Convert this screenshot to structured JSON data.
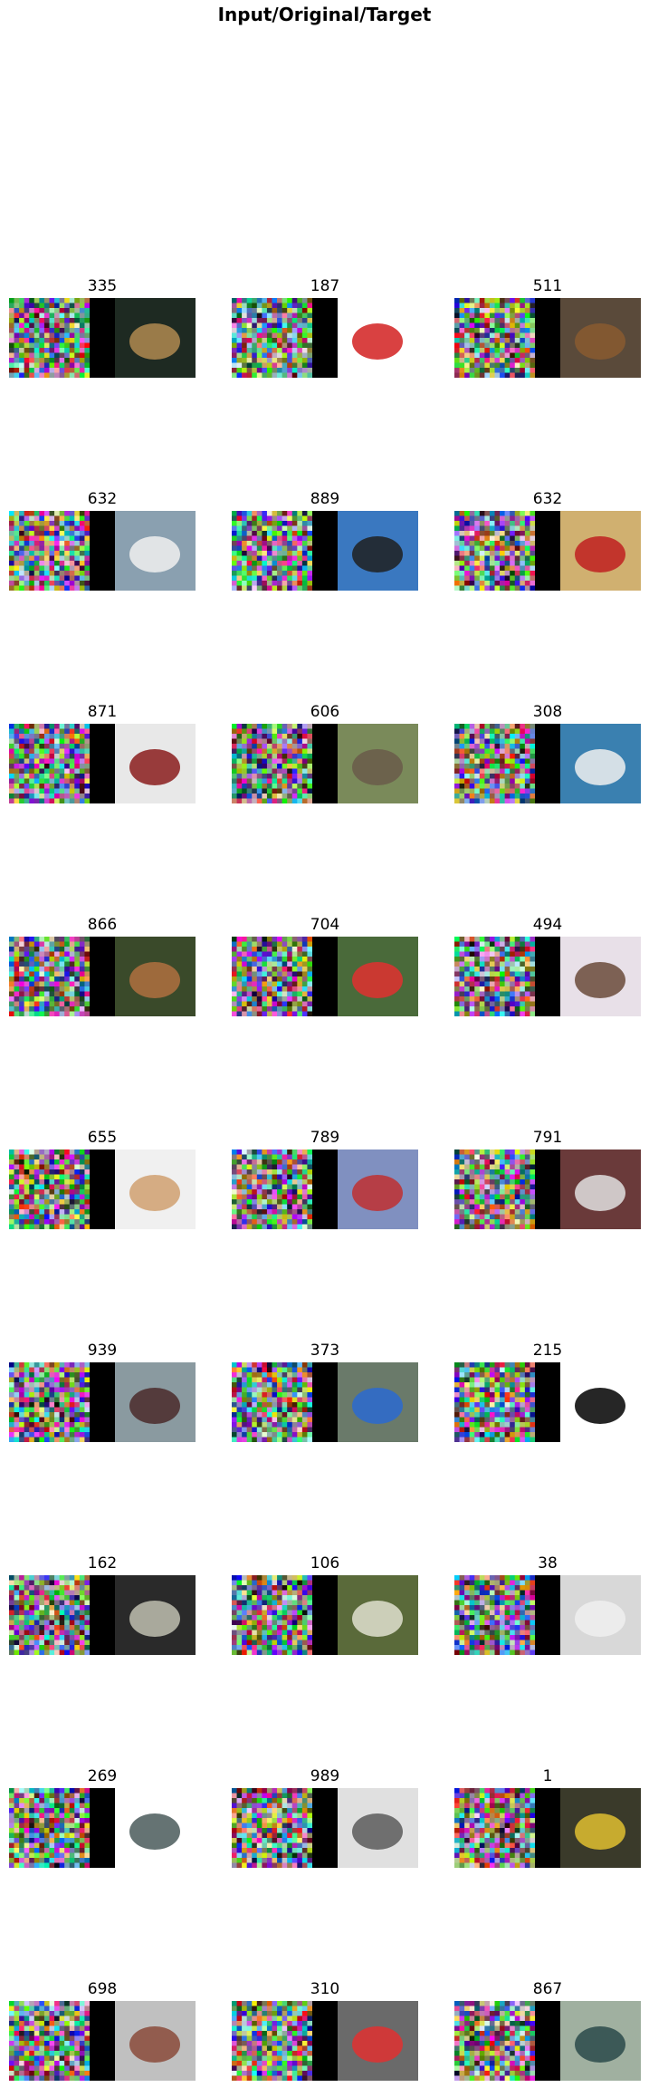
{
  "title": "Input/Original/Target",
  "grid": [
    [
      {
        "label": "335",
        "bg": "#1e2a22",
        "accent": "#b08a50"
      },
      {
        "label": "187",
        "bg": "#ffffff",
        "accent": "#d22020"
      },
      {
        "label": "511",
        "bg": "#5a4a3a",
        "accent": "#8a5a30"
      }
    ],
    [
      {
        "label": "632",
        "bg": "#8aa0b0",
        "accent": "#f0f0f0"
      },
      {
        "label": "889",
        "bg": "#3a78c0",
        "accent": "#202020"
      },
      {
        "label": "632",
        "bg": "#d0b070",
        "accent": "#c02020"
      }
    ],
    [
      {
        "label": "871",
        "bg": "#e8e8e8",
        "accent": "#8a1c1c"
      },
      {
        "label": "606",
        "bg": "#7a8a5a",
        "accent": "#6a5a4a"
      },
      {
        "label": "308",
        "bg": "#3a80b0",
        "accent": "#f0f0f0"
      }
    ],
    [
      {
        "label": "866",
        "bg": "#3a4a2a",
        "accent": "#b07040"
      },
      {
        "label": "704",
        "bg": "#4a6a3a",
        "accent": "#e03030"
      },
      {
        "label": "494",
        "bg": "#e8e0e8",
        "accent": "#6a4a3a"
      }
    ],
    [
      {
        "label": "655",
        "bg": "#f0f0f0",
        "accent": "#d0a070"
      },
      {
        "label": "789",
        "bg": "#8090c0",
        "accent": "#c03030"
      },
      {
        "label": "791",
        "bg": "#6a3a3a",
        "accent": "#e0e0e0"
      }
    ],
    [
      {
        "label": "939",
        "bg": "#8a9aa0",
        "accent": "#4a2a2a"
      },
      {
        "label": "373",
        "bg": "#6a7a6a",
        "accent": "#2a6ad0"
      },
      {
        "label": "215",
        "bg": "#ffffff",
        "accent": "#000000"
      }
    ],
    [
      {
        "label": "162",
        "bg": "#2a2a2a",
        "accent": "#c0c0b0"
      },
      {
        "label": "106",
        "bg": "#5a6a3a",
        "accent": "#e0e0d0"
      },
      {
        "label": "38",
        "bg": "#d8d8d8",
        "accent": "#f0f0f0"
      }
    ],
    [
      {
        "label": "269",
        "bg": "#ffffff",
        "accent": "#4a5a5a"
      },
      {
        "label": "989",
        "bg": "#e0e0e0",
        "accent": "#5a5a5a"
      },
      {
        "label": "1",
        "bg": "#3a3a2a",
        "accent": "#e0c030"
      }
    ],
    [
      {
        "label": "698",
        "bg": "#c0c0c0",
        "accent": "#8a4a3a"
      },
      {
        "label": "310",
        "bg": "#6a6a6a",
        "accent": "#e03030"
      },
      {
        "label": "867",
        "bg": "#a0b0a0",
        "accent": "#2a4a4a"
      }
    ]
  ]
}
